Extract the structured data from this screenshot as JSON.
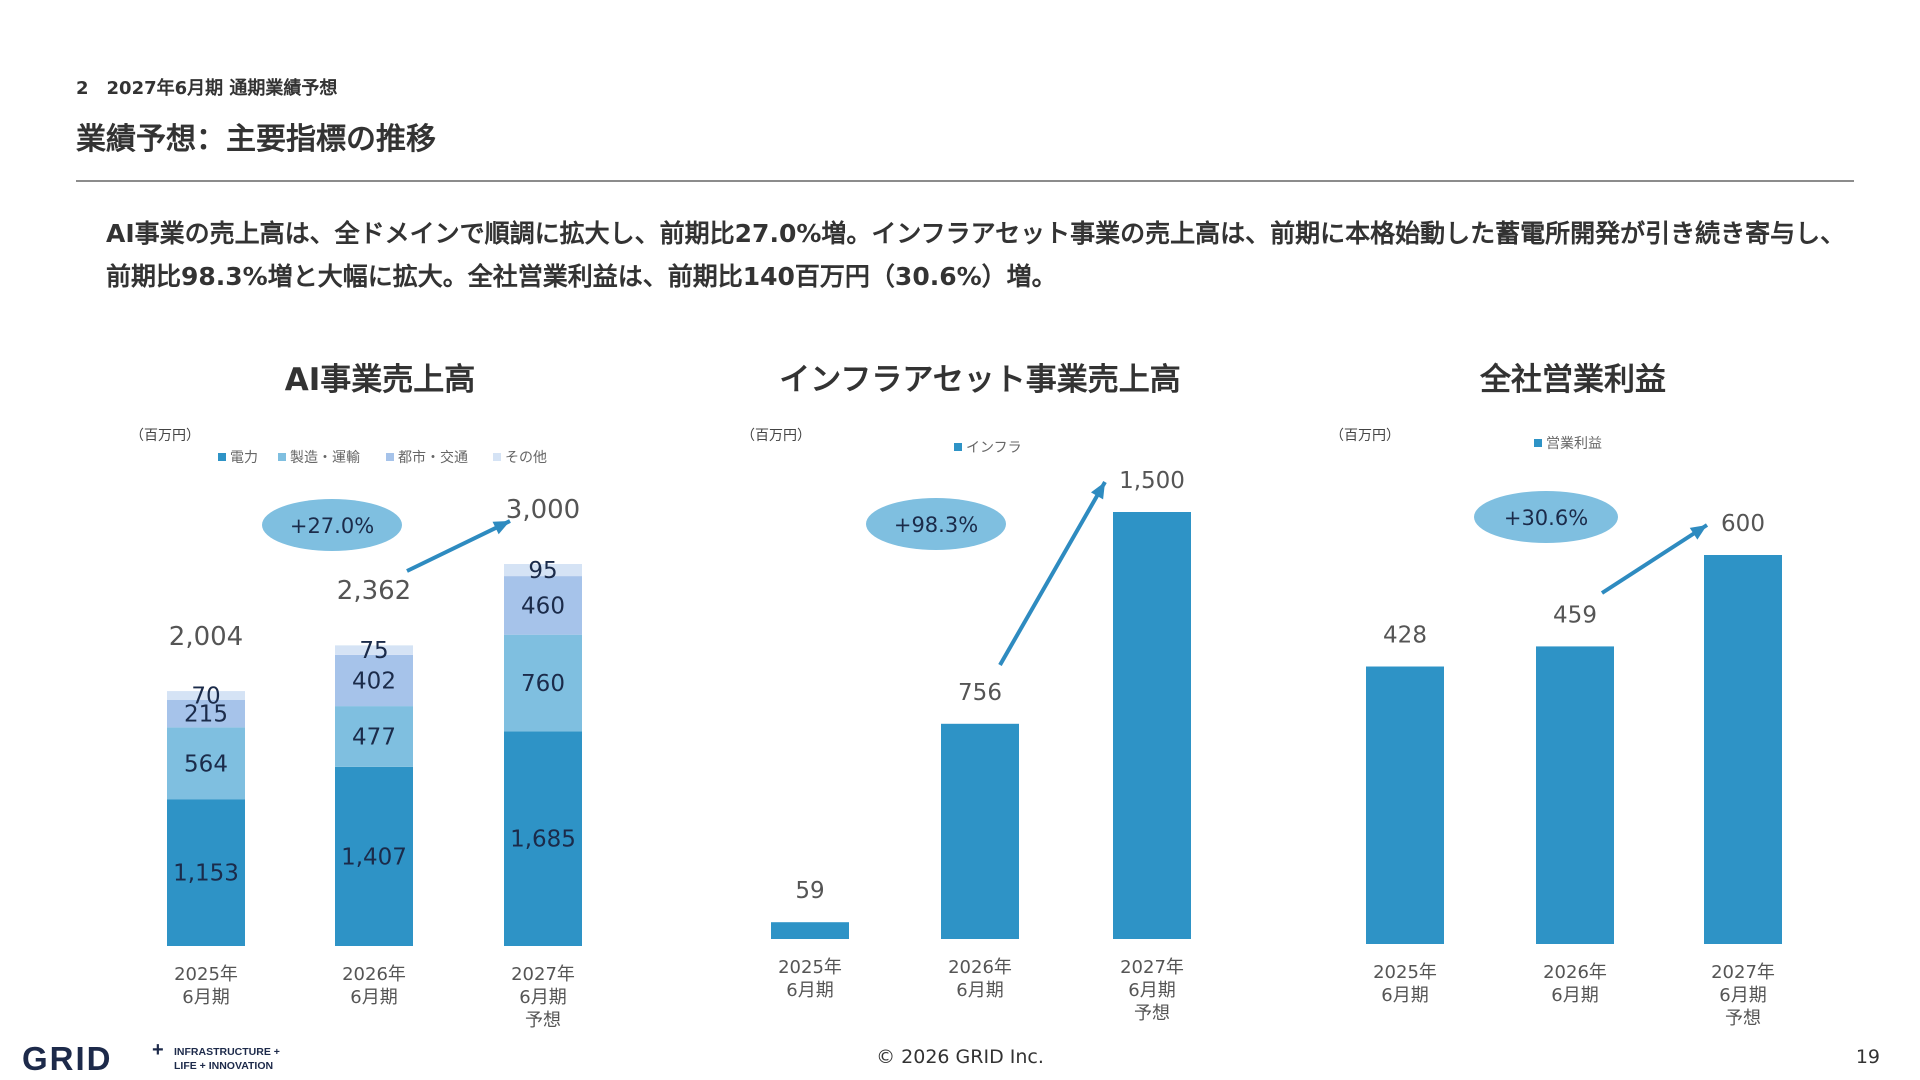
{
  "header": {
    "section": "2　2027年6月期 通期業績予想",
    "title": "業績予想：主要指標の推移"
  },
  "summary": "AI事業の売上高は、全ドメインで順調に拡大し、前期比27.0%増。インフラアセット事業の売上高は、前期に本格始動した蓄電所開発が引き続き寄与し、前期比98.3%増と大幅に拡大。全社営業利益は、前期比140百万円（30.6%）増。",
  "colors": {
    "denryoku": "#2e93c6",
    "seizo": "#7fbfe0",
    "toshi": "#a6c3ea",
    "sonota": "#d5e3f5",
    "bar": "#2e93c6",
    "ellipse": "#7fbfe0",
    "arrow": "#2e8bc0"
  },
  "chart_data": [
    {
      "type": "bar",
      "stacked": true,
      "title": "AI事業売上高",
      "unit": "（百万円）",
      "categories": [
        "2025年\n6月期",
        "2026年\n6月期",
        "2027年\n6月期\n予想"
      ],
      "series": [
        {
          "name": "電力",
          "values": [
            1153,
            1407,
            1685
          ]
        },
        {
          "name": "製造・運輸",
          "values": [
            564,
            477,
            760
          ]
        },
        {
          "name": "都市・交通",
          "values": [
            215,
            402,
            460
          ]
        },
        {
          "name": "その他",
          "values": [
            70,
            75,
            95
          ]
        }
      ],
      "value_labels": [
        "1,153",
        "1,407",
        "1,685",
        "564",
        "477",
        "760",
        "215",
        "402",
        "460",
        "70",
        "75",
        "95"
      ],
      "totals": [
        2004,
        2362,
        3000
      ],
      "total_labels": [
        "2,004",
        "2,362",
        "3,000"
      ],
      "growth": "+27.0%",
      "ylim": [
        0,
        3000
      ]
    },
    {
      "type": "bar",
      "title": "インフラアセット事業売上高",
      "unit": "（百万円）",
      "categories": [
        "2025年\n6月期",
        "2026年\n6月期",
        "2027年\n6月期\n予想"
      ],
      "series": [
        {
          "name": "インフラ",
          "values": [
            59,
            756,
            1500
          ]
        }
      ],
      "value_labels": [
        "59",
        "756",
        "1,500"
      ],
      "growth": "+98.3%",
      "ylim": [
        0,
        1500
      ]
    },
    {
      "type": "bar",
      "title": "全社営業利益",
      "unit": "（百万円）",
      "categories": [
        "2025年\n6月期",
        "2026年\n6月期",
        "2027年\n6月期\n予想"
      ],
      "series": [
        {
          "name": "営業利益",
          "values": [
            428,
            459,
            600
          ]
        }
      ],
      "value_labels": [
        "428",
        "459",
        "600"
      ],
      "growth": "+30.6%",
      "ylim": [
        0,
        600
      ]
    }
  ],
  "footer": {
    "logo_text": "GRID",
    "logo_tagline_1": "INFRASTRUCTURE +",
    "logo_tagline_2": "LIFE + INNOVATION",
    "copyright": "© 2026 GRID Inc.",
    "page": "19"
  }
}
